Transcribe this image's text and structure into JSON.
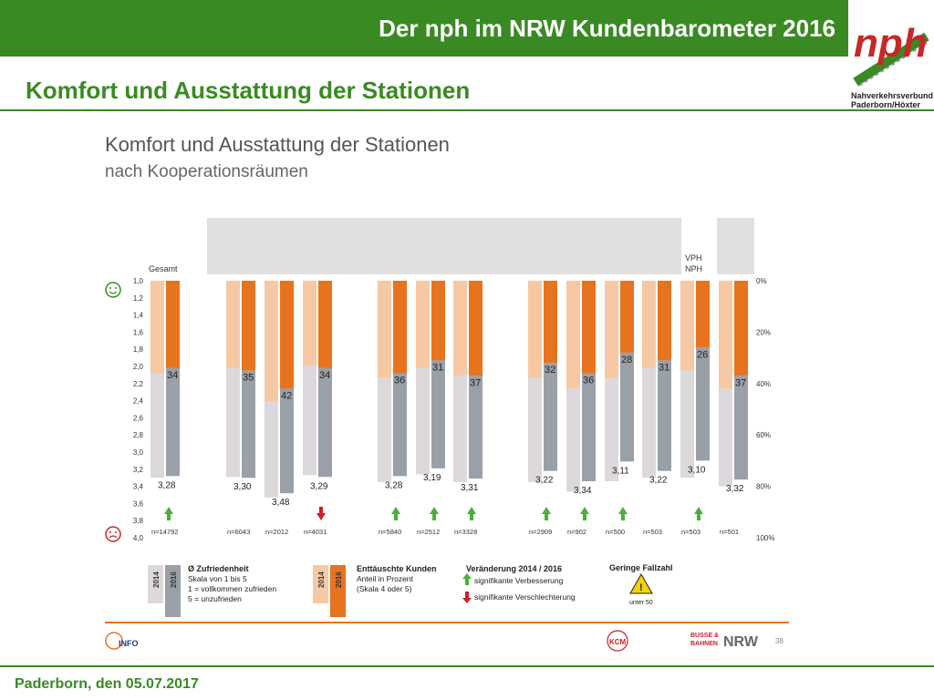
{
  "header": {
    "title": "Der nph im NRW Kundenbarometer 2016"
  },
  "logo": {
    "line1": "Nahverkehrsverbund",
    "line2": "Paderborn/Höxter",
    "mark": "nph"
  },
  "page": {
    "subtitle": "Komfort und Ausstattung der Stationen",
    "footer": "Paderborn, den 05.07.2017"
  },
  "slide": {
    "page_number": "38",
    "info_logo": "INFO",
    "kcm_logo": "KCM",
    "busse_logo_1": "BUSSE &",
    "busse_logo_2": "BAHNEN",
    "nrw": "NRW"
  },
  "colors": {
    "green": "#3a8a24",
    "gray_2014": "#ddd8dc",
    "gray_2016": "#9aa0a8",
    "orange_2014": "#f6c9a4",
    "orange_2016": "#e8731e",
    "arrow_up": "#4caf3a",
    "arrow_down": "#cc2128"
  },
  "chart_data": {
    "type": "bar",
    "title": "Komfort und Ausstattung der Stationen",
    "subtitle": "nach Kooperationsräumen",
    "gesamt_label": "Gesamt",
    "group_header": "VPH\nNPH",
    "left_axis": {
      "ylim": [
        1.0,
        4.0
      ],
      "ticks": [
        "1,0",
        "1,2",
        "1,4",
        "1,6",
        "1,8",
        "2,0",
        "2,2",
        "2,4",
        "2,6",
        "2,8",
        "3,0",
        "3,2",
        "3,4",
        "3,6",
        "3,8",
        "4,0"
      ]
    },
    "right_axis": {
      "ylim": [
        0,
        100
      ],
      "ticks": [
        "0%",
        "20%",
        "40%",
        "60%",
        "80%",
        "100%"
      ]
    },
    "groups": [
      {
        "avg2014": 3.3,
        "avg2016": 3.28,
        "avg_label": "3,28",
        "pct2014": 36,
        "pct2016": 34,
        "pct_label": "34",
        "change": "up",
        "n": "n=14792"
      },
      {
        "avg2014": 3.29,
        "avg2016": 3.3,
        "avg_label": "3,30",
        "pct2014": 34,
        "pct2016": 35,
        "pct_label": "35",
        "change": "",
        "n": "n=6043"
      },
      {
        "avg2014": 3.53,
        "avg2016": 3.48,
        "avg_label": "3,48",
        "pct2014": 47,
        "pct2016": 42,
        "pct_label": "42",
        "change": "",
        "n": "n=2012"
      },
      {
        "avg2014": 3.27,
        "avg2016": 3.29,
        "avg_label": "3,29",
        "pct2014": 33,
        "pct2016": 34,
        "pct_label": "34",
        "change": "down",
        "n": "n=4031"
      },
      {
        "avg2014": 3.35,
        "avg2016": 3.28,
        "avg_label": "3,28",
        "pct2014": 38,
        "pct2016": 36,
        "pct_label": "36",
        "change": "up",
        "n": "n=5840"
      },
      {
        "avg2014": 3.26,
        "avg2016": 3.19,
        "avg_label": "3,19",
        "pct2014": 34,
        "pct2016": 31,
        "pct_label": "31",
        "change": "up",
        "n": "n=2512"
      },
      {
        "avg2014": 3.35,
        "avg2016": 3.31,
        "avg_label": "3,31",
        "pct2014": 37,
        "pct2016": 37,
        "pct_label": "37",
        "change": "up",
        "n": "n=3328"
      },
      {
        "avg2014": 3.35,
        "avg2016": 3.22,
        "avg_label": "3,22",
        "pct2014": 38,
        "pct2016": 32,
        "pct_label": "32",
        "change": "up",
        "n": "n=2909"
      },
      {
        "avg2014": 3.46,
        "avg2016": 3.34,
        "avg_label": "3,34",
        "pct2014": 42,
        "pct2016": 36,
        "pct_label": "36",
        "change": "up",
        "n": "n=902"
      },
      {
        "avg2014": 3.34,
        "avg2016": 3.11,
        "avg_label": "3,11",
        "pct2014": 38,
        "pct2016": 28,
        "pct_label": "28",
        "change": "up",
        "n": "n=500"
      },
      {
        "avg2014": 3.3,
        "avg2016": 3.22,
        "avg_label": "3,22",
        "pct2014": 34,
        "pct2016": 31,
        "pct_label": "31",
        "change": "",
        "n": "n=503"
      },
      {
        "avg2014": 3.3,
        "avg2016": 3.1,
        "avg_label": "3,10",
        "pct2014": 35,
        "pct2016": 26,
        "pct_label": "26",
        "change": "up",
        "n": "n=503"
      },
      {
        "avg2014": 3.4,
        "avg2016": 3.32,
        "avg_label": "3,32",
        "pct2014": 42,
        "pct2016": 37,
        "pct_label": "37",
        "change": "",
        "n": "n=501"
      }
    ],
    "legend": {
      "year_2014": "2014",
      "year_2016": "2016",
      "satisfaction_title": "Ø Zufriedenheit",
      "satisfaction_lines": [
        "Skala von 1 bis 5",
        "1 = vollkommen zufrieden",
        "5 = unzufrieden"
      ],
      "disappointed_title": "Enttäuschte Kunden",
      "disappointed_lines": [
        "Anteil in Prozent",
        "(Skala 4 oder 5)"
      ],
      "change_title": "Veränderung 2014 / 2016",
      "change_up": "signifikante Verbesserung",
      "change_down": "signifikante Verschlechterung",
      "small_sample_title": "Geringe Fallzahl",
      "small_sample_sub": "unter 50"
    }
  }
}
